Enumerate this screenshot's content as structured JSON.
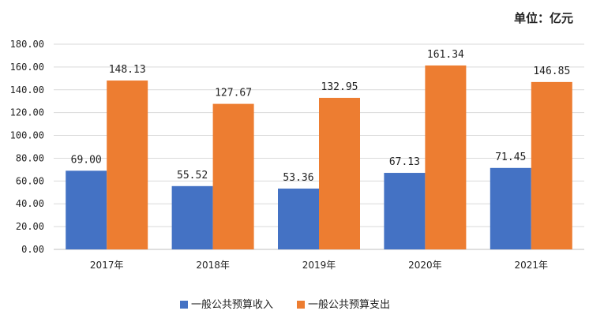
{
  "unit_label": "单位：亿元",
  "chart_data": {
    "type": "bar",
    "categories": [
      "2017年",
      "2018年",
      "2019年",
      "2020年",
      "2021年"
    ],
    "series": [
      {
        "name": "一般公共预算收入",
        "values": [
          69.0,
          55.52,
          53.36,
          67.13,
          71.45
        ],
        "color": "#4472C4"
      },
      {
        "name": "一般公共预算支出",
        "values": [
          148.13,
          127.67,
          132.95,
          161.34,
          146.85
        ],
        "color": "#ED7D31"
      }
    ],
    "ylim": [
      0,
      180
    ],
    "yticks": [
      "0.00",
      "20.00",
      "40.00",
      "60.00",
      "80.00",
      "100.00",
      "120.00",
      "140.00",
      "160.00",
      "180.00"
    ],
    "grid": true,
    "legend": "bottom",
    "xlabel": "",
    "ylabel": ""
  }
}
